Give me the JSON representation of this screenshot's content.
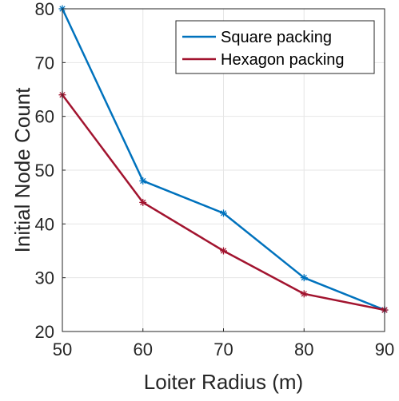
{
  "chart_data": {
    "type": "line",
    "title": "",
    "xlabel": "Loiter Radius (m)",
    "ylabel": "Initial Node Count",
    "x": [
      50,
      60,
      70,
      80,
      90
    ],
    "xlim": [
      50,
      90
    ],
    "ylim": [
      20,
      80
    ],
    "xticks": [
      "50",
      "60",
      "70",
      "80",
      "90"
    ],
    "yticks": [
      "20",
      "30",
      "40",
      "50",
      "60",
      "70",
      "80"
    ],
    "grid": true,
    "legend_position": "top-right",
    "marker": "asterisk",
    "series": [
      {
        "name": "Square packing",
        "values": [
          80,
          48,
          42,
          30,
          24
        ],
        "color": "#0072BD"
      },
      {
        "name": "Hexagon packing",
        "values": [
          64,
          44,
          35,
          27,
          24
        ],
        "color": "#A2142F"
      }
    ]
  }
}
